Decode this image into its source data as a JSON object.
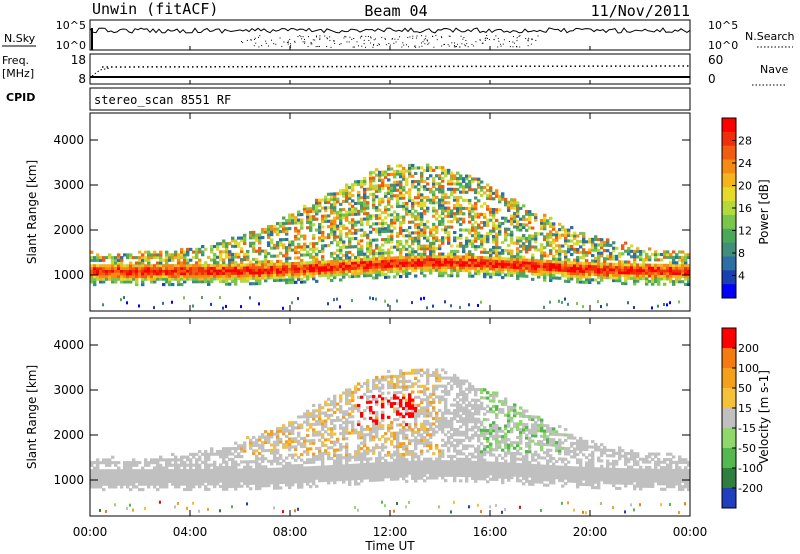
{
  "header": {
    "title": "Unwin (fitACF)",
    "beam": "Beam 04",
    "date": "11/Nov/2011"
  },
  "panels": {
    "nsky": {
      "left_label": "N.Sky",
      "left_ticks": [
        "10^5",
        "10^0"
      ],
      "right_label": "N.Search",
      "right_ticks": [
        "10^5",
        "10^0"
      ]
    },
    "freq": {
      "left_label_1": "Freq.",
      "left_label_2": "[MHz]",
      "left_ticks": [
        "18",
        "8"
      ],
      "right_label": "Nave",
      "right_ticks": [
        "60",
        "0"
      ]
    },
    "cpid": {
      "label": "CPID",
      "text": "stereo_scan 8551 RF"
    }
  },
  "chart_data": [
    {
      "type": "heatmap",
      "ylabel": "Slant Range [km]",
      "y_ticks": [
        "4000",
        "3000",
        "2000",
        "1000"
      ],
      "ylim": [
        200,
        4600
      ],
      "colorbar": {
        "label": "Power [dB]",
        "ticks": [
          "28",
          "24",
          "20",
          "16",
          "12",
          "8",
          "4"
        ],
        "colors": [
          "#0000ff",
          "#1a3fb3",
          "#2b6fa4",
          "#3f8f7a",
          "#4aa85a",
          "#79c74a",
          "#b3d93a",
          "#e6d928",
          "#f5b31c",
          "#f68a14",
          "#f25c0e",
          "#ef2f0a",
          "#ff0000"
        ]
      }
    },
    {
      "type": "heatmap",
      "ylabel": "Slant Range [km]",
      "y_ticks": [
        "4000",
        "3000",
        "2000",
        "1000"
      ],
      "ylim": [
        200,
        4600
      ],
      "colorbar": {
        "label": "Velocity [m s-1]",
        "ticks": [
          "200",
          "100",
          "50",
          "15",
          "-15",
          "-50",
          "-100",
          "-200"
        ],
        "colors": [
          "#1f3fbf",
          "#2e7f3f",
          "#55b84f",
          "#8fd86a",
          "#c0c0c0",
          "#f5c03a",
          "#f5a01a",
          "#f57a10",
          "#ff0000"
        ]
      }
    }
  ],
  "xaxis": {
    "label": "Time UT",
    "ticks": [
      "00:00",
      "04:00",
      "08:00",
      "12:00",
      "16:00",
      "20:00",
      "00:00"
    ],
    "xlim": [
      0,
      24
    ]
  }
}
